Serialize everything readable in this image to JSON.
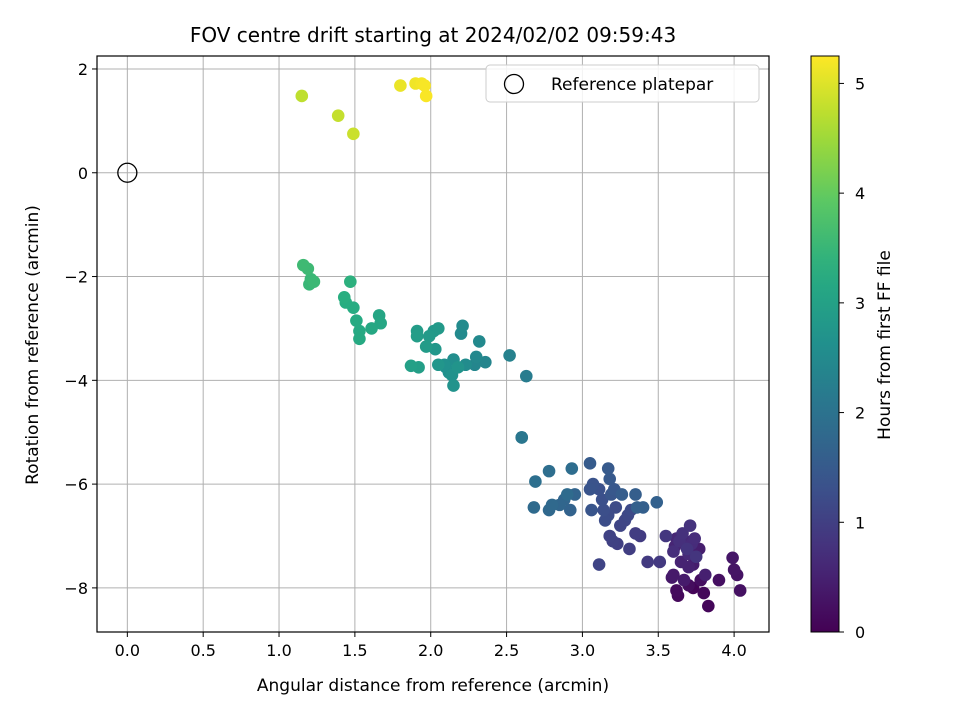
{
  "chart_data": {
    "type": "scatter",
    "title": "FOV centre drift starting at 2024/02/02 09:59:43",
    "xlabel": "Angular distance from reference (arcmin)",
    "ylabel": "Rotation from reference (arcmin)",
    "xlim": [
      -0.2,
      4.23
    ],
    "ylim": [
      -8.85,
      2.25
    ],
    "xticks": [
      0.0,
      0.5,
      1.0,
      1.5,
      2.0,
      2.5,
      3.0,
      3.5,
      4.0
    ],
    "xtick_labels": [
      "0.0",
      "0.5",
      "1.0",
      "1.5",
      "2.0",
      "2.5",
      "3.0",
      "3.5",
      "4.0"
    ],
    "yticks": [
      2,
      0,
      -2,
      -4,
      -6,
      -8
    ],
    "ytick_labels": [
      "2",
      "0",
      "−2",
      "−4",
      "−6",
      "−8"
    ],
    "grid": true,
    "legend": {
      "position": "top-right",
      "entries": [
        "Reference platepar"
      ]
    },
    "reference_point": {
      "x": 0.0,
      "y": 0.0,
      "label": "Reference platepar"
    },
    "colorbar": {
      "label": "Hours from first FF file",
      "colormap": "viridis",
      "range": [
        0,
        5.25
      ],
      "ticks": [
        0,
        1,
        2,
        3,
        4,
        5
      ],
      "tick_labels": [
        "0",
        "1",
        "2",
        "3",
        "4",
        "5"
      ]
    },
    "points": [
      [
        3.73,
        -8.0,
        0.05
      ],
      [
        3.83,
        -8.35,
        0.08
      ],
      [
        3.8,
        -8.1,
        0.1
      ],
      [
        3.63,
        -8.15,
        0.12
      ],
      [
        3.62,
        -8.05,
        0.15
      ],
      [
        3.7,
        -7.95,
        0.18
      ],
      [
        3.78,
        -7.85,
        0.2
      ],
      [
        3.9,
        -7.85,
        0.22
      ],
      [
        4.04,
        -8.05,
        0.25
      ],
      [
        4.02,
        -7.75,
        0.28
      ],
      [
        4.0,
        -7.65,
        0.3
      ],
      [
        3.99,
        -7.42,
        0.32
      ],
      [
        3.59,
        -7.8,
        0.35
      ],
      [
        3.6,
        -7.75,
        0.38
      ],
      [
        3.67,
        -7.85,
        0.4
      ],
      [
        3.73,
        -7.55,
        0.42
      ],
      [
        3.77,
        -7.25,
        0.45
      ],
      [
        3.81,
        -7.75,
        0.48
      ],
      [
        3.7,
        -7.6,
        0.5
      ],
      [
        3.65,
        -7.5,
        0.52
      ],
      [
        3.61,
        -7.2,
        0.55
      ],
      [
        3.62,
        -7.05,
        0.58
      ],
      [
        3.68,
        -7.1,
        0.6
      ],
      [
        3.7,
        -7.35,
        0.62
      ],
      [
        3.72,
        -7.15,
        0.65
      ],
      [
        3.74,
        -7.05,
        0.68
      ],
      [
        3.6,
        -7.3,
        0.7
      ],
      [
        3.64,
        -7.1,
        0.72
      ],
      [
        3.66,
        -6.95,
        0.75
      ],
      [
        3.71,
        -6.8,
        0.78
      ],
      [
        3.69,
        -7.25,
        0.8
      ],
      [
        3.75,
        -7.4,
        0.82
      ],
      [
        3.55,
        -7.0,
        0.85
      ],
      [
        3.51,
        -7.5,
        0.88
      ],
      [
        3.43,
        -7.5,
        0.9
      ],
      [
        3.38,
        -7.0,
        0.92
      ],
      [
        3.35,
        -6.95,
        0.95
      ],
      [
        3.31,
        -7.25,
        0.98
      ],
      [
        3.23,
        -7.15,
        1.0
      ],
      [
        3.2,
        -7.1,
        1.02
      ],
      [
        3.18,
        -7.0,
        1.05
      ],
      [
        3.11,
        -7.55,
        1.08
      ],
      [
        3.25,
        -6.8,
        1.1
      ],
      [
        3.28,
        -6.7,
        1.12
      ],
      [
        3.3,
        -6.6,
        1.15
      ],
      [
        3.32,
        -6.5,
        1.18
      ],
      [
        3.22,
        -6.45,
        1.2
      ],
      [
        3.17,
        -6.6,
        1.22
      ],
      [
        3.15,
        -6.7,
        1.25
      ],
      [
        3.14,
        -6.5,
        1.28
      ],
      [
        3.13,
        -6.3,
        1.3
      ],
      [
        3.11,
        -6.1,
        1.32
      ],
      [
        3.07,
        -6.0,
        1.35
      ],
      [
        3.05,
        -6.1,
        1.38
      ],
      [
        3.06,
        -6.5,
        1.4
      ],
      [
        3.19,
        -6.2,
        1.42
      ],
      [
        3.21,
        -6.1,
        1.45
      ],
      [
        3.18,
        -5.9,
        1.48
      ],
      [
        3.17,
        -5.7,
        1.5
      ],
      [
        3.05,
        -5.6,
        1.52
      ],
      [
        3.26,
        -6.2,
        1.55
      ],
      [
        3.35,
        -6.2,
        1.58
      ],
      [
        3.4,
        -6.45,
        1.6
      ],
      [
        3.36,
        -6.45,
        1.62
      ],
      [
        3.49,
        -6.35,
        1.65
      ],
      [
        2.92,
        -6.5,
        1.68
      ],
      [
        2.95,
        -6.2,
        1.7
      ],
      [
        2.88,
        -6.3,
        1.72
      ],
      [
        2.85,
        -6.4,
        1.75
      ],
      [
        2.78,
        -6.5,
        1.78
      ],
      [
        2.8,
        -6.4,
        1.8
      ],
      [
        2.68,
        -6.45,
        1.82
      ],
      [
        2.9,
        -6.2,
        1.85
      ],
      [
        2.93,
        -5.7,
        1.88
      ],
      [
        2.78,
        -5.75,
        1.9
      ],
      [
        2.69,
        -5.95,
        1.92
      ],
      [
        2.6,
        -5.1,
        2.05
      ],
      [
        2.6,
        -5.1,
        2.08
      ],
      [
        2.63,
        -3.92,
        2.2
      ],
      [
        2.52,
        -3.52,
        2.3
      ],
      [
        2.36,
        -3.65,
        2.4
      ],
      [
        2.29,
        -3.7,
        2.42
      ],
      [
        2.3,
        -3.55,
        2.45
      ],
      [
        2.32,
        -3.25,
        2.48
      ],
      [
        2.2,
        -3.1,
        2.5
      ],
      [
        2.21,
        -2.95,
        2.52
      ],
      [
        2.23,
        -3.7,
        2.55
      ],
      [
        2.15,
        -3.6,
        2.58
      ],
      [
        2.12,
        -3.85,
        2.6
      ],
      [
        2.1,
        -3.75,
        2.62
      ],
      [
        2.09,
        -3.7,
        2.65
      ],
      [
        2.14,
        -3.9,
        2.68
      ],
      [
        2.15,
        -4.1,
        2.7
      ],
      [
        2.18,
        -3.75,
        2.72
      ],
      [
        2.05,
        -3.7,
        2.75
      ],
      [
        2.03,
        -3.4,
        2.78
      ],
      [
        2.02,
        -3.05,
        2.8
      ],
      [
        2.05,
        -3.0,
        2.82
      ],
      [
        1.99,
        -3.15,
        2.85
      ],
      [
        1.97,
        -3.35,
        2.88
      ],
      [
        1.91,
        -3.05,
        2.9
      ],
      [
        1.91,
        -3.15,
        2.92
      ],
      [
        1.92,
        -3.75,
        2.95
      ],
      [
        1.87,
        -3.72,
        2.98
      ],
      [
        1.66,
        -2.75,
        3.1
      ],
      [
        1.67,
        -2.9,
        3.12
      ],
      [
        1.61,
        -3.0,
        3.15
      ],
      [
        1.53,
        -3.05,
        3.18
      ],
      [
        1.53,
        -3.2,
        3.2
      ],
      [
        1.51,
        -2.85,
        3.22
      ],
      [
        1.49,
        -2.6,
        3.25
      ],
      [
        1.44,
        -2.5,
        3.28
      ],
      [
        1.43,
        -2.4,
        3.3
      ],
      [
        1.47,
        -2.1,
        3.35
      ],
      [
        1.2,
        -2.15,
        3.5
      ],
      [
        1.21,
        -2.05,
        3.52
      ],
      [
        1.23,
        -2.1,
        3.54
      ],
      [
        1.19,
        -1.85,
        3.56
      ],
      [
        1.16,
        -1.78,
        3.58
      ],
      [
        1.15,
        1.48,
        4.75
      ],
      [
        1.39,
        1.1,
        4.8
      ],
      [
        1.49,
        0.75,
        4.85
      ],
      [
        1.8,
        1.68,
        5.1
      ],
      [
        1.9,
        1.72,
        5.15
      ],
      [
        1.94,
        1.72,
        5.18
      ],
      [
        1.96,
        1.68,
        5.2
      ],
      [
        1.97,
        1.48,
        5.22
      ]
    ]
  }
}
